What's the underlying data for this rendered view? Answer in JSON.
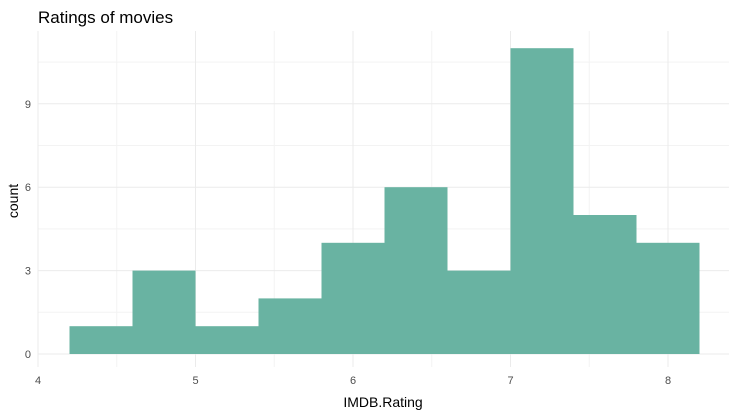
{
  "chart_data": {
    "type": "bar",
    "subtype": "histogram",
    "title": "Ratings of movies",
    "xlabel": "IMDB.Rating",
    "ylabel": "count",
    "bins": [
      {
        "x0": 4.2,
        "x1": 4.6,
        "count": 1
      },
      {
        "x0": 4.6,
        "x1": 5.0,
        "count": 3
      },
      {
        "x0": 5.0,
        "x1": 5.4,
        "count": 1
      },
      {
        "x0": 5.4,
        "x1": 5.8,
        "count": 2
      },
      {
        "x0": 5.8,
        "x1": 6.2,
        "count": 4
      },
      {
        "x0": 6.2,
        "x1": 6.6,
        "count": 6
      },
      {
        "x0": 6.6,
        "x1": 7.0,
        "count": 3
      },
      {
        "x0": 7.0,
        "x1": 7.4,
        "count": 11
      },
      {
        "x0": 7.4,
        "x1": 7.8,
        "count": 5
      },
      {
        "x0": 7.8,
        "x1": 8.2,
        "count": 4
      }
    ],
    "x_ticks": [
      4,
      5,
      6,
      7,
      8
    ],
    "y_ticks": [
      0,
      3,
      6,
      9
    ],
    "xlim": [
      4.0,
      8.4
    ],
    "ylim": [
      0,
      11.5
    ],
    "bar_color": "#69b3a2",
    "grid": true,
    "legend": "none"
  }
}
